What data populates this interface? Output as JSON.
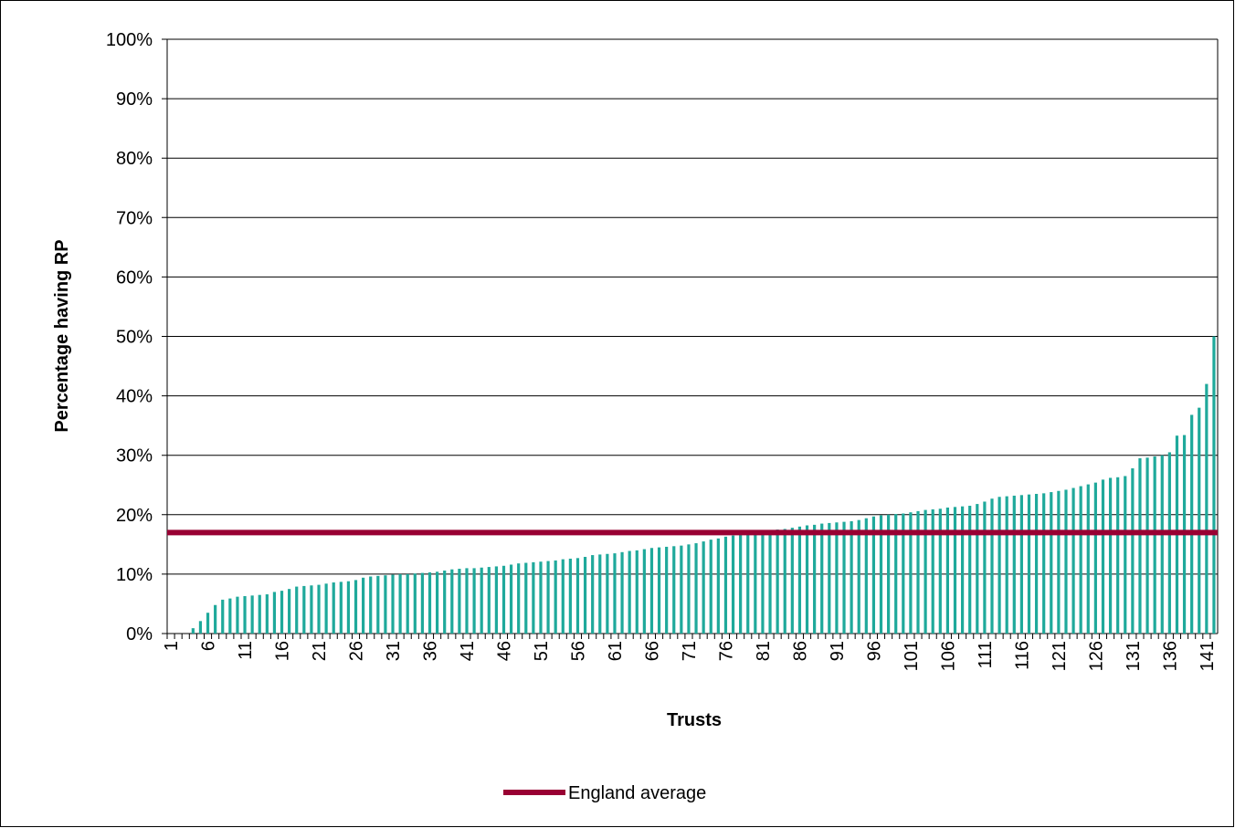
{
  "chart_data": {
    "type": "bar",
    "x_label": "Trusts",
    "y_label": "Percentage having RP",
    "categories": [
      "1",
      null,
      null,
      null,
      null,
      "6",
      null,
      null,
      null,
      null,
      "11",
      null,
      null,
      null,
      null,
      "16",
      null,
      null,
      null,
      null,
      "21",
      null,
      null,
      null,
      null,
      "26",
      null,
      null,
      null,
      null,
      "31",
      null,
      null,
      null,
      null,
      "36",
      null,
      null,
      null,
      null,
      "41",
      null,
      null,
      null,
      null,
      "46",
      null,
      null,
      null,
      null,
      "51",
      null,
      null,
      null,
      null,
      "56",
      null,
      null,
      null,
      null,
      "61",
      null,
      null,
      null,
      null,
      "66",
      null,
      null,
      null,
      null,
      "71",
      null,
      null,
      null,
      null,
      "76",
      null,
      null,
      null,
      null,
      "81",
      null,
      null,
      null,
      null,
      "86",
      null,
      null,
      null,
      null,
      "91",
      null,
      null,
      null,
      null,
      "96",
      null,
      null,
      null,
      null,
      "101",
      null,
      null,
      null,
      null,
      "106",
      null,
      null,
      null,
      null,
      "111",
      null,
      null,
      null,
      null,
      "116",
      null,
      null,
      null,
      null,
      "121",
      null,
      null,
      null,
      null,
      "126",
      null,
      null,
      null,
      null,
      "131",
      null,
      null,
      null,
      null,
      "136",
      null,
      null,
      null,
      null,
      "141",
      null
    ],
    "values": [
      0,
      0,
      0,
      0.9,
      2.1,
      3.5,
      4.8,
      5.7,
      5.9,
      6.2,
      6.3,
      6.4,
      6.5,
      6.6,
      7.0,
      7.2,
      7.5,
      7.9,
      8.0,
      8.1,
      8.2,
      8.4,
      8.6,
      8.7,
      8.8,
      9.0,
      9.4,
      9.6,
      9.7,
      9.8,
      9.9,
      10.0,
      10.0,
      10.1,
      10.2,
      10.3,
      10.4,
      10.6,
      10.8,
      10.9,
      11.0,
      11.0,
      11.1,
      11.2,
      11.3,
      11.4,
      11.6,
      11.8,
      11.9,
      12.0,
      12.1,
      12.2,
      12.3,
      12.5,
      12.6,
      12.7,
      12.9,
      13.2,
      13.3,
      13.4,
      13.5,
      13.7,
      13.9,
      14.0,
      14.2,
      14.4,
      14.5,
      14.6,
      14.7,
      14.8,
      15.0,
      15.2,
      15.5,
      15.8,
      16.0,
      16.3,
      16.5,
      16.7,
      16.9,
      17.0,
      17.1,
      17.3,
      17.5,
      17.6,
      17.8,
      18.0,
      18.2,
      18.3,
      18.5,
      18.6,
      18.7,
      18.8,
      18.9,
      19.1,
      19.4,
      19.7,
      19.9,
      20.0,
      20.1,
      20.2,
      20.4,
      20.6,
      20.8,
      20.9,
      21.0,
      21.2,
      21.3,
      21.4,
      21.5,
      21.8,
      22.2,
      22.7,
      23.0,
      23.1,
      23.2,
      23.3,
      23.4,
      23.5,
      23.6,
      23.8,
      24.0,
      24.2,
      24.5,
      24.8,
      25.1,
      25.4,
      25.9,
      26.2,
      26.3,
      26.5,
      27.8,
      29.5,
      29.6,
      29.8,
      30.0,
      30.5,
      33.3,
      33.4,
      36.8,
      38.0,
      42.0,
      50.0
    ],
    "color": "#1fa99b",
    "reference_line": {
      "name": "England average",
      "value": 17,
      "color": "#990033"
    },
    "ylim": [
      0,
      100
    ],
    "yticks": [
      {
        "value": 0,
        "label": "0%"
      },
      {
        "value": 10,
        "label": "10%"
      },
      {
        "value": 20,
        "label": "20%"
      },
      {
        "value": 30,
        "label": "30%"
      },
      {
        "value": 40,
        "label": "40%"
      },
      {
        "value": 50,
        "label": "50%"
      },
      {
        "value": 60,
        "label": "60%"
      },
      {
        "value": 70,
        "label": "70%"
      },
      {
        "value": 80,
        "label": "80%"
      },
      {
        "value": 90,
        "label": "90%"
      },
      {
        "value": 100,
        "label": "100%"
      }
    ],
    "grid": true,
    "legend": "bottom"
  }
}
